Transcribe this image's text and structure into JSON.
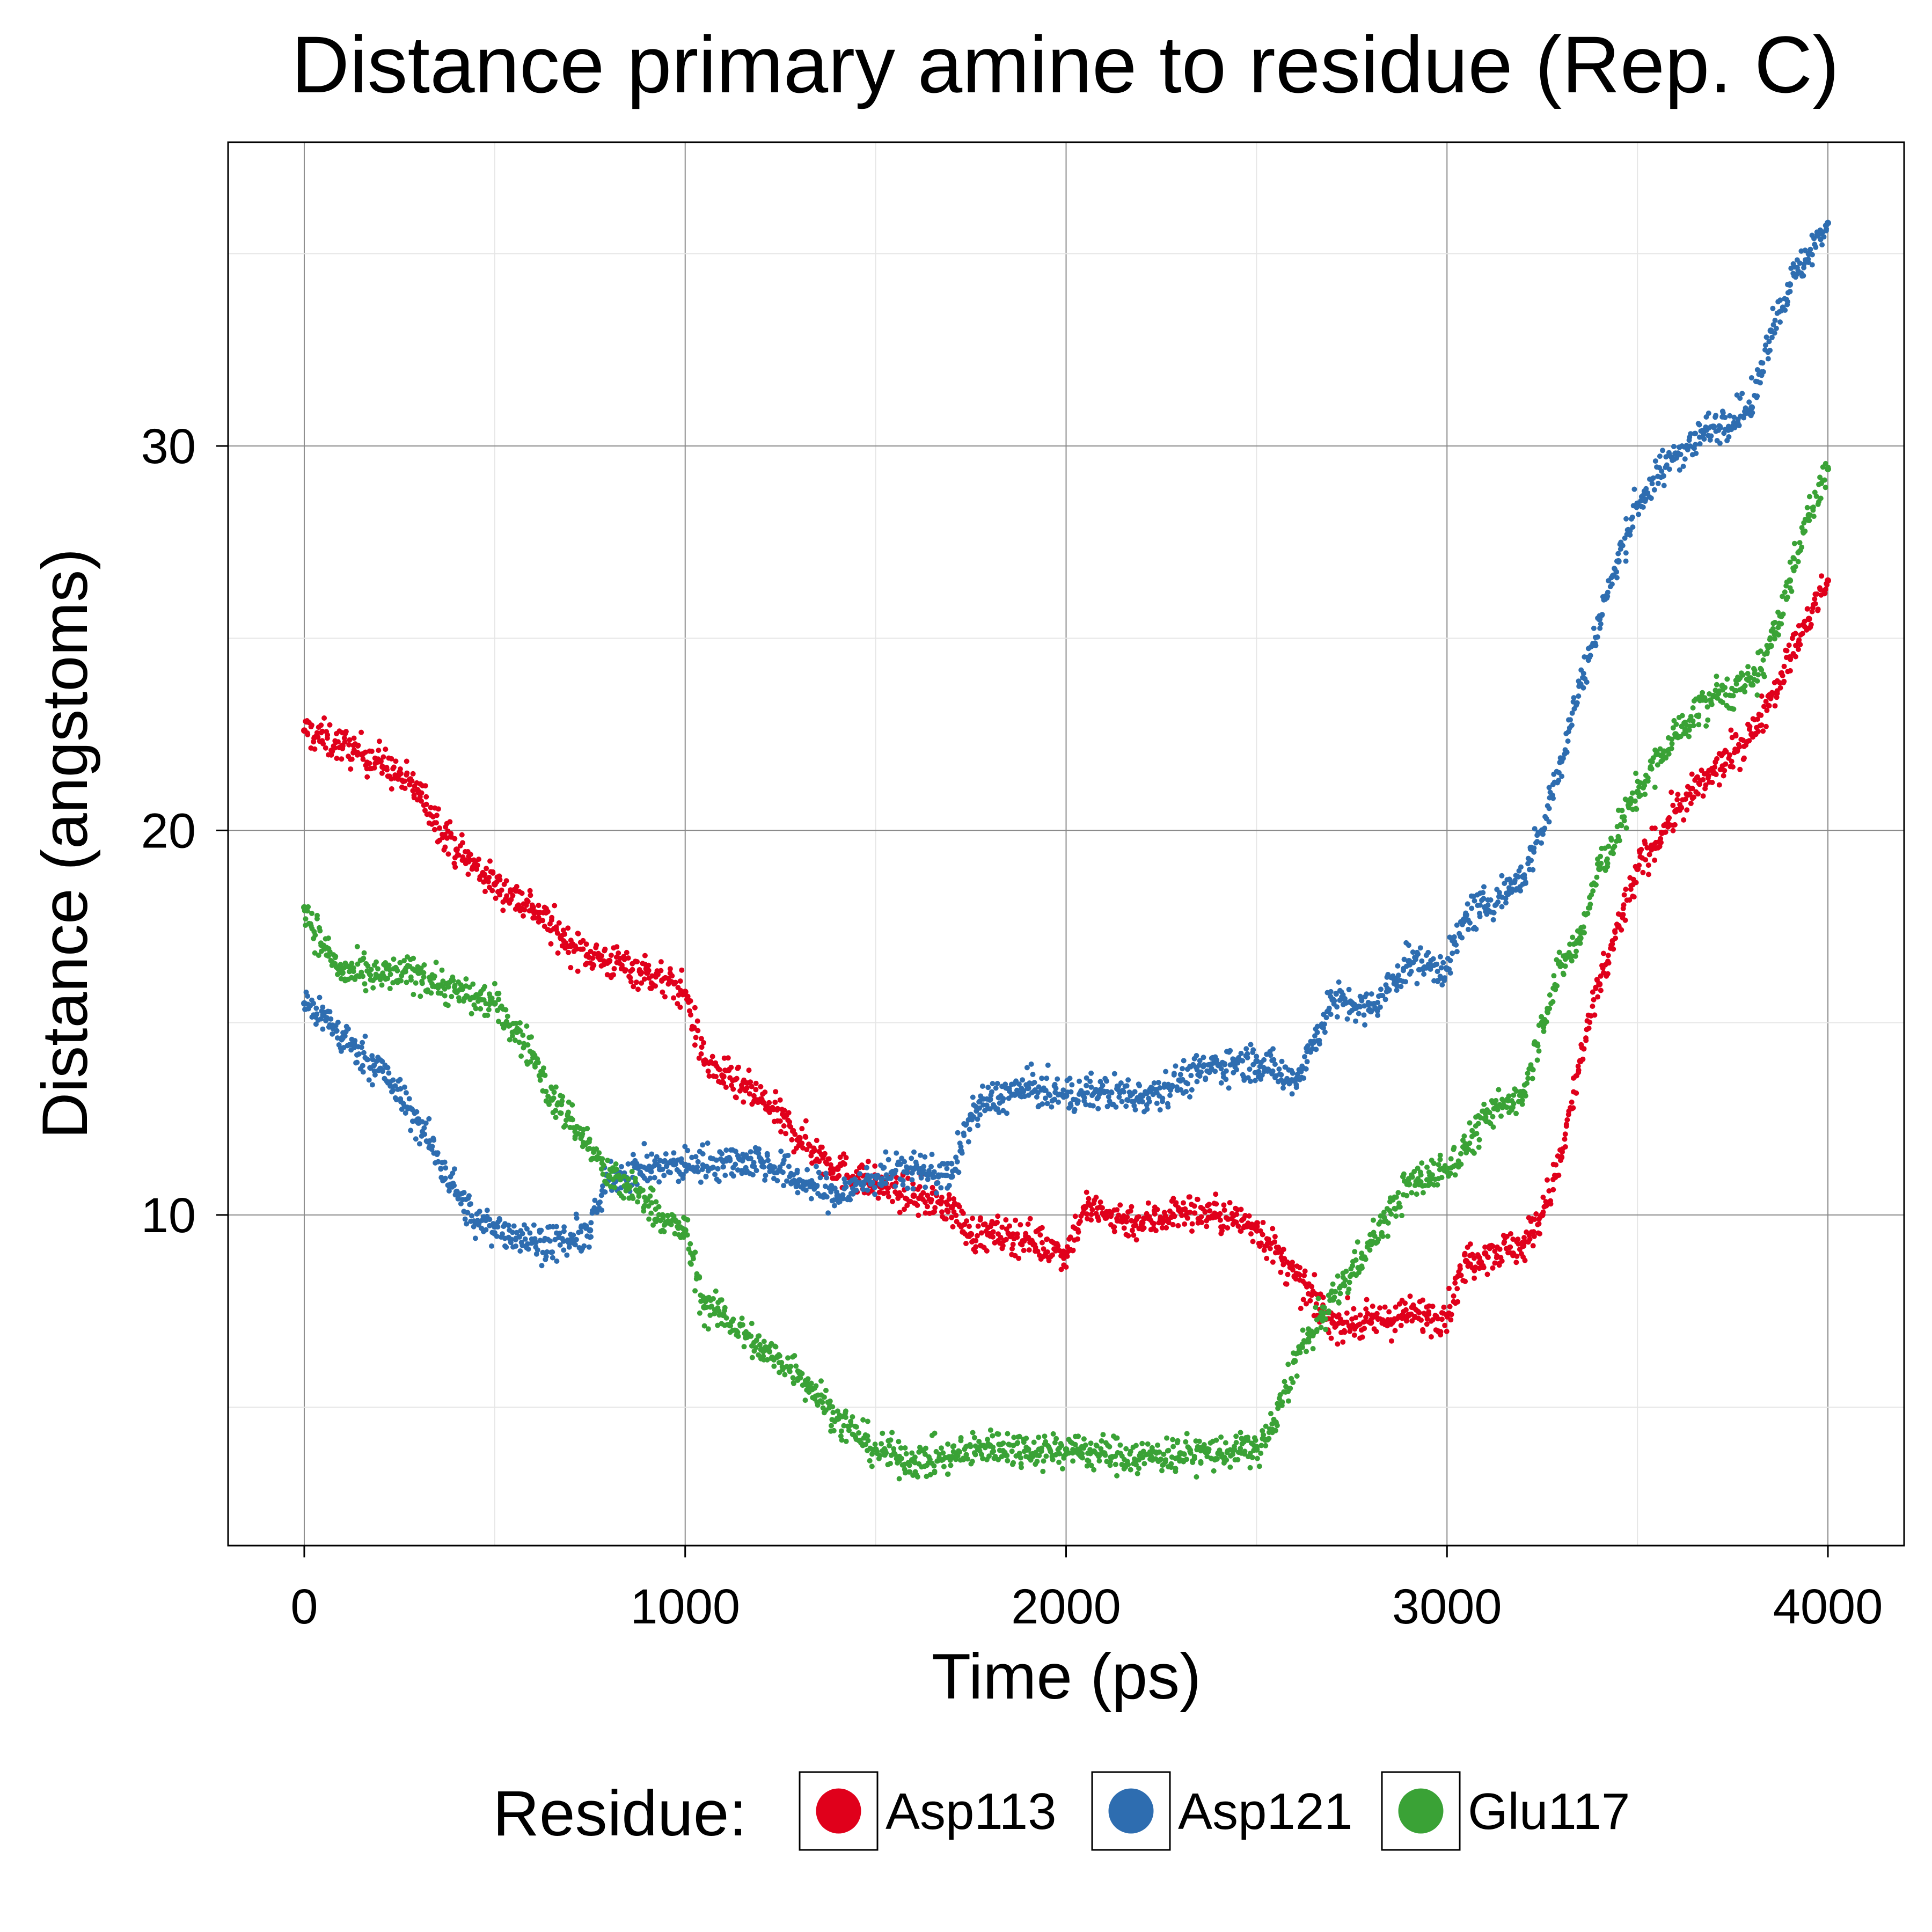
{
  "chart_data": {
    "type": "scatter",
    "title": "Distance primary amine to residue (Rep. C)",
    "xlabel": "Time (ps)",
    "ylabel": "Distance (angstoms)",
    "xlim": [
      -200,
      4200
    ],
    "ylim": [
      1.4,
      37.9
    ],
    "x_ticks": [
      0,
      1000,
      2000,
      3000,
      4000
    ],
    "x_tick_labels": [
      "0",
      "1000",
      "2000",
      "3000",
      "4000"
    ],
    "y_ticks": [
      10,
      20,
      30
    ],
    "y_tick_labels": [
      "10",
      "20",
      "30"
    ],
    "grid": true,
    "legend": {
      "title": "Residue:",
      "position": "bottom"
    },
    "series": [
      {
        "name": "Asp113",
        "color": "#e0001b",
        "points": [
          [
            0,
            22.6
          ],
          [
            100,
            22.2
          ],
          [
            200,
            21.8
          ],
          [
            300,
            21.0
          ],
          [
            400,
            19.5
          ],
          [
            500,
            18.6
          ],
          [
            600,
            18.0
          ],
          [
            700,
            17.0
          ],
          [
            800,
            16.6
          ],
          [
            900,
            16.3
          ],
          [
            1000,
            15.8
          ],
          [
            1050,
            14.0
          ],
          [
            1100,
            13.6
          ],
          [
            1200,
            13.0
          ],
          [
            1300,
            12.0
          ],
          [
            1400,
            11.2
          ],
          [
            1500,
            10.8
          ],
          [
            1600,
            10.5
          ],
          [
            1700,
            10.2
          ],
          [
            1750,
            9.5
          ],
          [
            1800,
            9.5
          ],
          [
            1900,
            9.4
          ],
          [
            2000,
            9.0
          ],
          [
            2050,
            10.2
          ],
          [
            2100,
            10.0
          ],
          [
            2200,
            9.8
          ],
          [
            2300,
            10.1
          ],
          [
            2400,
            10.0
          ],
          [
            2500,
            9.7
          ],
          [
            2600,
            8.4
          ],
          [
            2700,
            7.2
          ],
          [
            2800,
            7.2
          ],
          [
            2900,
            7.4
          ],
          [
            3000,
            7.4
          ],
          [
            3050,
            8.8
          ],
          [
            3100,
            9.0
          ],
          [
            3200,
            9.2
          ],
          [
            3250,
            10.0
          ],
          [
            3300,
            11.5
          ],
          [
            3350,
            14.0
          ],
          [
            3400,
            16.0
          ],
          [
            3450,
            17.5
          ],
          [
            3500,
            19.0
          ],
          [
            3600,
            20.5
          ],
          [
            3700,
            21.5
          ],
          [
            3800,
            22.5
          ],
          [
            3850,
            23.5
          ],
          [
            3900,
            24.5
          ],
          [
            3950,
            25.5
          ],
          [
            4000,
            26.5
          ]
        ]
      },
      {
        "name": "Asp121",
        "color": "#2e6db0",
        "points": [
          [
            0,
            15.5
          ],
          [
            50,
            15.2
          ],
          [
            100,
            14.6
          ],
          [
            200,
            13.8
          ],
          [
            300,
            12.4
          ],
          [
            400,
            10.6
          ],
          [
            450,
            9.8
          ],
          [
            500,
            9.7
          ],
          [
            600,
            9.3
          ],
          [
            700,
            9.3
          ],
          [
            750,
            9.6
          ],
          [
            800,
            11.0
          ],
          [
            900,
            11.2
          ],
          [
            1000,
            11.3
          ],
          [
            1100,
            11.4
          ],
          [
            1200,
            11.4
          ],
          [
            1300,
            10.9
          ],
          [
            1400,
            10.5
          ],
          [
            1500,
            11.0
          ],
          [
            1600,
            11.2
          ],
          [
            1700,
            11.0
          ],
          [
            1750,
            12.6
          ],
          [
            1800,
            13.0
          ],
          [
            1900,
            13.3
          ],
          [
            2000,
            13.1
          ],
          [
            2100,
            13.2
          ],
          [
            2200,
            13.1
          ],
          [
            2300,
            13.5
          ],
          [
            2400,
            13.9
          ],
          [
            2500,
            14.0
          ],
          [
            2600,
            13.5
          ],
          [
            2650,
            14.5
          ],
          [
            2700,
            15.6
          ],
          [
            2800,
            15.3
          ],
          [
            2900,
            16.6
          ],
          [
            3000,
            16.4
          ],
          [
            3050,
            17.8
          ],
          [
            3100,
            18.0
          ],
          [
            3200,
            18.8
          ],
          [
            3250,
            20.0
          ],
          [
            3300,
            21.8
          ],
          [
            3350,
            23.8
          ],
          [
            3400,
            25.5
          ],
          [
            3450,
            27.0
          ],
          [
            3500,
            28.5
          ],
          [
            3600,
            29.8
          ],
          [
            3700,
            30.5
          ],
          [
            3800,
            31.0
          ],
          [
            3850,
            33.0
          ],
          [
            3900,
            34.2
          ],
          [
            3950,
            35.0
          ],
          [
            4000,
            35.8
          ]
        ]
      },
      {
        "name": "Glu117",
        "color": "#3aa236",
        "points": [
          [
            0,
            18.0
          ],
          [
            50,
            17.0
          ],
          [
            100,
            16.3
          ],
          [
            200,
            16.2
          ],
          [
            300,
            16.3
          ],
          [
            400,
            15.8
          ],
          [
            500,
            15.5
          ],
          [
            600,
            14.2
          ],
          [
            650,
            13.0
          ],
          [
            700,
            12.5
          ],
          [
            800,
            11.0
          ],
          [
            900,
            10.4
          ],
          [
            950,
            9.8
          ],
          [
            1000,
            9.6
          ],
          [
            1050,
            7.6
          ],
          [
            1100,
            7.4
          ],
          [
            1200,
            6.5
          ],
          [
            1300,
            5.9
          ],
          [
            1400,
            4.7
          ],
          [
            1500,
            3.9
          ],
          [
            1600,
            3.6
          ],
          [
            1700,
            3.7
          ],
          [
            1800,
            4.0
          ],
          [
            1900,
            3.9
          ],
          [
            2000,
            3.9
          ],
          [
            2100,
            3.8
          ],
          [
            2200,
            3.7
          ],
          [
            2300,
            3.8
          ],
          [
            2400,
            3.8
          ],
          [
            2500,
            3.9
          ],
          [
            2550,
            4.6
          ],
          [
            2600,
            6.2
          ],
          [
            2700,
            7.8
          ],
          [
            2800,
            9.3
          ],
          [
            2900,
            10.8
          ],
          [
            3000,
            11.2
          ],
          [
            3050,
            11.8
          ],
          [
            3100,
            12.5
          ],
          [
            3200,
            13.2
          ],
          [
            3250,
            15.0
          ],
          [
            3300,
            16.5
          ],
          [
            3350,
            17.2
          ],
          [
            3400,
            19.0
          ],
          [
            3500,
            21.0
          ],
          [
            3600,
            22.5
          ],
          [
            3700,
            23.5
          ],
          [
            3800,
            23.8
          ],
          [
            3850,
            24.8
          ],
          [
            3900,
            26.5
          ],
          [
            3950,
            28.2
          ],
          [
            4000,
            29.4
          ]
        ]
      }
    ]
  }
}
